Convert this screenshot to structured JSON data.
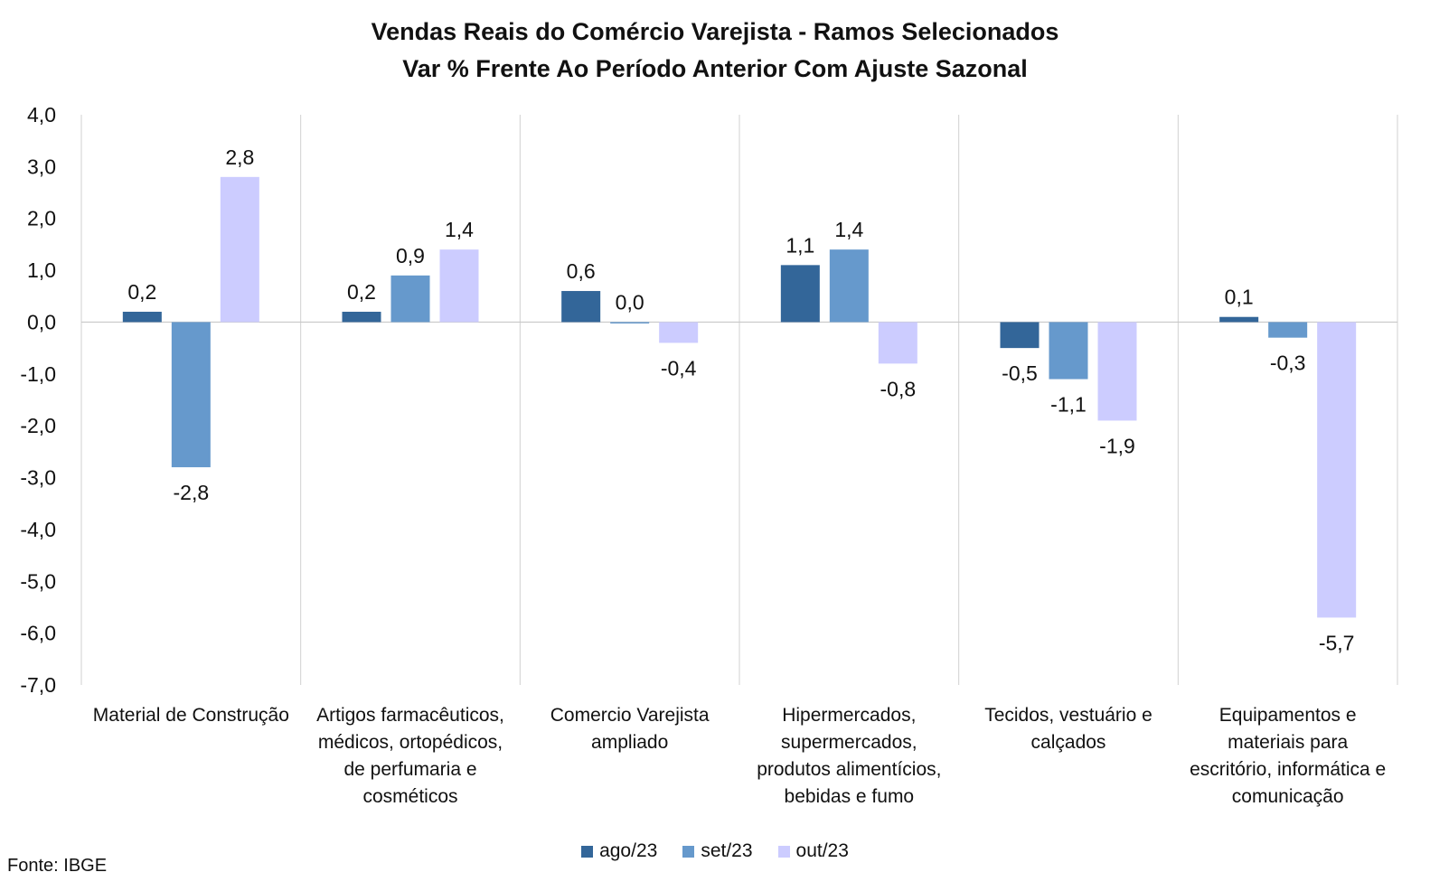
{
  "chart_data": {
    "type": "bar",
    "title": [
      "Vendas Reais do Comércio Varejista - Ramos Selecionados",
      "Var % Frente Ao Período Anterior Com Ajuste Sazonal"
    ],
    "categories": [
      "Material de Construção",
      "Artigos farmacêuticos, médicos, ortopédicos, de perfumaria e cosméticos",
      "Comercio Varejista ampliado",
      "Hipermercados, supermercados, produtos alimentícios, bebidas e fumo",
      "Tecidos, vestuário e calçados",
      "Equipamentos e materiais para escritório, informática e comunicação"
    ],
    "category_lines": [
      [
        "Material de Construção"
      ],
      [
        "Artigos farmacêuticos,",
        "médicos, ortopédicos,",
        "de perfumaria e",
        "cosméticos"
      ],
      [
        "Comercio Varejista",
        "ampliado"
      ],
      [
        "Hipermercados,",
        "supermercados,",
        "produtos alimentícios,",
        "bebidas e fumo"
      ],
      [
        "Tecidos, vestuário e",
        "calçados"
      ],
      [
        "Equipamentos e",
        "materiais para",
        "escritório, informática e",
        "comunicação"
      ]
    ],
    "series": [
      {
        "name": "ago/23",
        "values": [
          0.2,
          0.2,
          0.6,
          1.1,
          -0.5,
          0.1
        ],
        "labels": [
          "0,2",
          "0,2",
          "0,6",
          "1,1",
          "-0,5",
          "0,1"
        ],
        "color": "#336699"
      },
      {
        "name": "set/23",
        "values": [
          -2.8,
          0.9,
          0.0,
          1.4,
          -1.1,
          -0.3
        ],
        "labels": [
          "-2,8",
          "0,9",
          "0,0",
          "1,4",
          "-1,1",
          "-0,3"
        ],
        "color": "#6699CC"
      },
      {
        "name": "out/23",
        "values": [
          2.8,
          1.4,
          -0.4,
          -0.8,
          -1.9,
          -5.7
        ],
        "labels": [
          "2,8",
          "1,4",
          "-0,4",
          "-0,8",
          "-1,9",
          "-5,7"
        ],
        "color": "#CCCCFF"
      }
    ],
    "ylim": [
      -7,
      4
    ],
    "yticks": [
      4,
      3,
      2,
      1,
      0,
      -1,
      -2,
      -3,
      -4,
      -5,
      -6,
      -7
    ],
    "ytick_labels": [
      "4,0",
      "3,0",
      "2,0",
      "1,0",
      "0,0",
      "-1,0",
      "-2,0",
      "-3,0",
      "-4,0",
      "-5,0",
      "-6,0",
      "-7,0"
    ],
    "grid": "vertical category separators",
    "legend_position": "bottom-center",
    "xlabel": "",
    "ylabel": ""
  },
  "source": "Fonte: IBGE"
}
